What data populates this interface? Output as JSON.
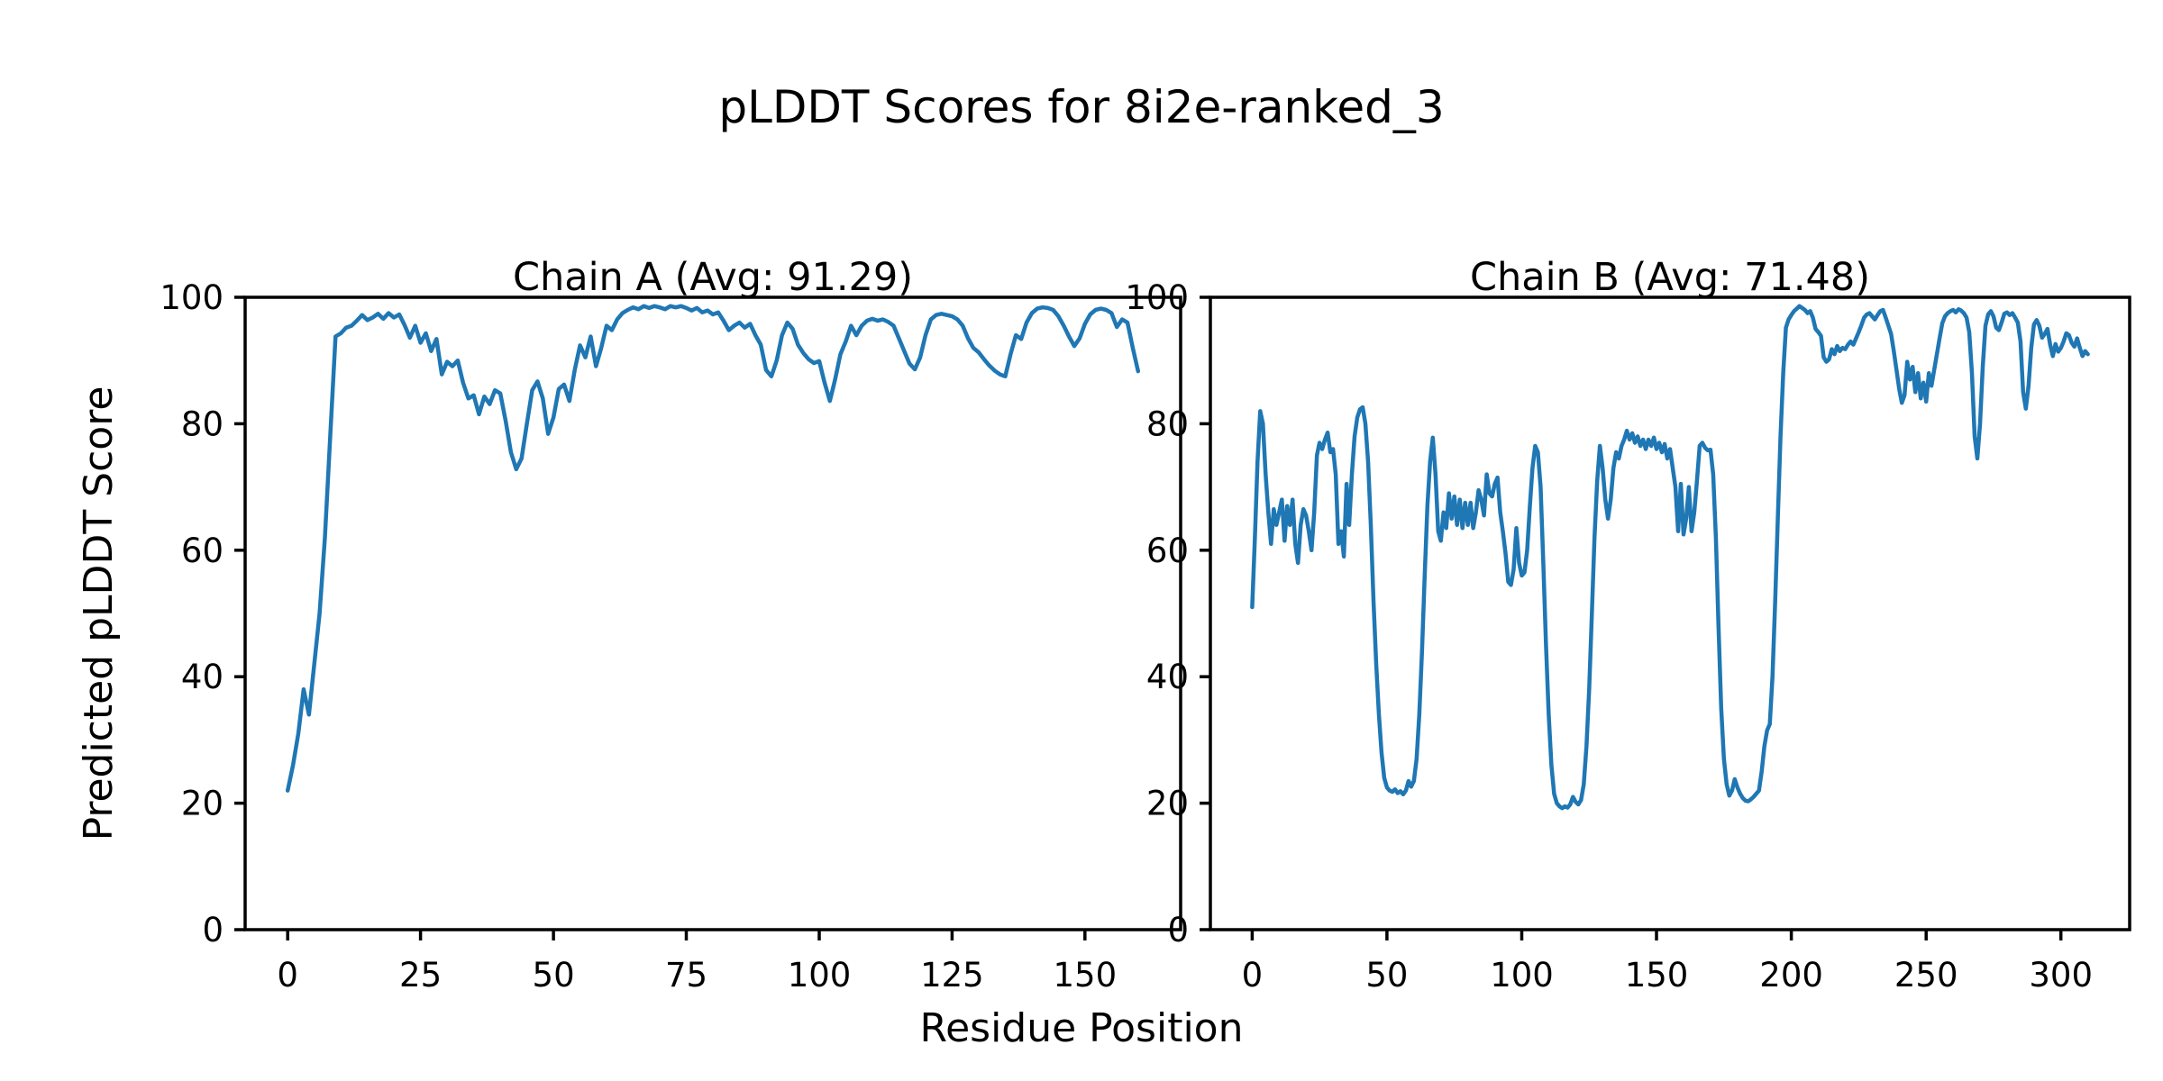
{
  "chart_data": {
    "type": "line",
    "title": "pLDDT Scores for 8i2e-ranked_3",
    "xlabel": "Residue Position",
    "ylabel": "Predicted pLDDT Score",
    "ylim": [
      0,
      100
    ],
    "grid": false,
    "legend": "none",
    "line_color": "#1f77b4",
    "axis_color": "#000000",
    "background_color": "#ffffff",
    "subplots": [
      {
        "title": "Chain A (Avg: 91.29)",
        "avg": 91.29,
        "x_start": 0,
        "xticks": [
          0,
          25,
          50,
          75,
          100,
          125,
          150
        ],
        "yticks": [
          0,
          20,
          40,
          60,
          80,
          100
        ],
        "values": [
          22,
          26,
          31,
          38,
          34,
          42,
          50,
          62,
          78,
          93.8,
          94.3,
          95.2,
          95.5,
          96.3,
          97.2,
          96.4,
          96.8,
          97.4,
          96.6,
          97.5,
          96.8,
          97.3,
          95.6,
          93.6,
          95.5,
          92.8,
          94.3,
          91.5,
          93.4,
          87.8,
          89.8,
          89.1,
          90,
          86.5,
          84,
          84.5,
          81.5,
          84.3,
          83.1,
          85.3,
          84.8,
          80.5,
          75.5,
          72.8,
          74.5,
          80,
          85.3,
          86.7,
          84,
          78.4,
          81,
          85.5,
          86.2,
          83.6,
          88.5,
          92.4,
          90.5,
          93.8,
          89.1,
          92,
          95.5,
          94.8,
          96.5,
          97.5,
          98,
          98.4,
          98.1,
          98.6,
          98.3,
          98.6,
          98.4,
          98.1,
          98.6,
          98.4,
          98.6,
          98.3,
          97.9,
          98.3,
          97.6,
          97.9,
          97.3,
          97.6,
          96.3,
          94.8,
          95.5,
          96,
          95.2,
          95.8,
          94,
          92.5,
          88.5,
          87.5,
          90,
          94,
          96,
          95,
          92.5,
          91.2,
          90.2,
          89.6,
          89.9,
          86.5,
          83.6,
          87,
          91,
          93,
          95.5,
          94,
          95.5,
          96.3,
          96.6,
          96.3,
          96.5,
          96.1,
          95.5,
          93.5,
          91.5,
          89.5,
          88.6,
          90.5,
          94,
          96.5,
          97.2,
          97.4,
          97.2,
          97,
          96.5,
          95.5,
          93.5,
          92,
          91.3,
          90.2,
          89.2,
          88.4,
          87.8,
          87.5,
          91,
          94,
          93.4,
          96,
          97.5,
          98.2,
          98.4,
          98.3,
          98,
          97,
          95.5,
          93.8,
          92.3,
          93.5,
          95.8,
          97.3,
          98,
          98.2,
          98,
          97.5,
          95.3,
          96.5,
          96,
          92,
          88.3
        ]
      },
      {
        "title": "Chain B (Avg: 71.48)",
        "avg": 71.48,
        "x_start": 0,
        "xticks": [
          0,
          50,
          100,
          150,
          200,
          250,
          300
        ],
        "yticks": [
          0,
          20,
          40,
          60,
          80,
          100
        ],
        "values": [
          51,
          62,
          74,
          82,
          80,
          72,
          66,
          61,
          66.5,
          64,
          66,
          68,
          61.5,
          67,
          64,
          68,
          61,
          58,
          64,
          66.5,
          65.5,
          63,
          60,
          66,
          75,
          77,
          76,
          77.5,
          78.6,
          75.5,
          76,
          72,
          61,
          63,
          59,
          70.5,
          64,
          72,
          78,
          81,
          82.3,
          82.6,
          80,
          74,
          64,
          52,
          42,
          34,
          28,
          24,
          22.5,
          22,
          21.8,
          22.2,
          21.6,
          21.9,
          21.4,
          22,
          23.5,
          22.6,
          23.5,
          27,
          34,
          44,
          56,
          67,
          74,
          77.8,
          72,
          63,
          61.5,
          66,
          63.5,
          69,
          65,
          68.5,
          64,
          68,
          63.5,
          67.5,
          64,
          67.5,
          63.5,
          66,
          69.5,
          68,
          65.5,
          72,
          69,
          68.5,
          70.5,
          71.5,
          66,
          63,
          59.5,
          55,
          54.5,
          57,
          63.5,
          58,
          56,
          56.5,
          60,
          67,
          73,
          76.5,
          75.5,
          70,
          58,
          45,
          34,
          26,
          21.5,
          20,
          19.5,
          19.2,
          19.5,
          19.3,
          19.8,
          21,
          20.2,
          19.8,
          20.5,
          23,
          29,
          38,
          50,
          62,
          71,
          76.5,
          73,
          68,
          65,
          68,
          73,
          75.5,
          74.5,
          76.5,
          77.5,
          78.9,
          77.5,
          78.5,
          77,
          78,
          76.5,
          77.5,
          76,
          77.5,
          76.5,
          77.8,
          76,
          77,
          75.5,
          76.8,
          74.5,
          76,
          73,
          70,
          63,
          70.5,
          62.5,
          65,
          70,
          63,
          66,
          71,
          76.5,
          77,
          76.2,
          75.8,
          75.9,
          72,
          62,
          48,
          35,
          27,
          23,
          21.2,
          22,
          23.8,
          22.5,
          21.5,
          20.8,
          20.4,
          20.3,
          20.6,
          21,
          21.5,
          22,
          25,
          29,
          31.5,
          32.5,
          40,
          52,
          65,
          78,
          88,
          95.2,
          96.5,
          97.2,
          97.8,
          98.2,
          98.6,
          98.3,
          98,
          97.5,
          97.8,
          96.8,
          95,
          94.5,
          93.9,
          90.5,
          89.8,
          90.2,
          91.8,
          91,
          92.3,
          91.5,
          92,
          91.8,
          92.5,
          93,
          92.5,
          93.5,
          94.5,
          95.6,
          96.8,
          97.3,
          97.5,
          97,
          96.5,
          97.2,
          97.8,
          98,
          96.8,
          95.5,
          94.2,
          91.5,
          88.5,
          85.5,
          83.3,
          84.5,
          89.8,
          87,
          89,
          85,
          88,
          84,
          86.5,
          83.5,
          88,
          86,
          88.5,
          91,
          93.5,
          95.9,
          97,
          97.5,
          97.8,
          98,
          97.6,
          98.1,
          97.9,
          97.5,
          96.8,
          94.5,
          88,
          78,
          74.5,
          80,
          89,
          95.5,
          97.3,
          97.8,
          97,
          95.2,
          94.8,
          96,
          97.4,
          97.6,
          97.2,
          97.5,
          96.8,
          96,
          93,
          85,
          82.4,
          86,
          92,
          95.7,
          96.4,
          95.5,
          93.6,
          94.2,
          95,
          92.5,
          90.7,
          92.6,
          91.4,
          92,
          93,
          94.3,
          94,
          92.8,
          92.2,
          93.5,
          92,
          90.7,
          91.5,
          91
        ]
      }
    ]
  }
}
